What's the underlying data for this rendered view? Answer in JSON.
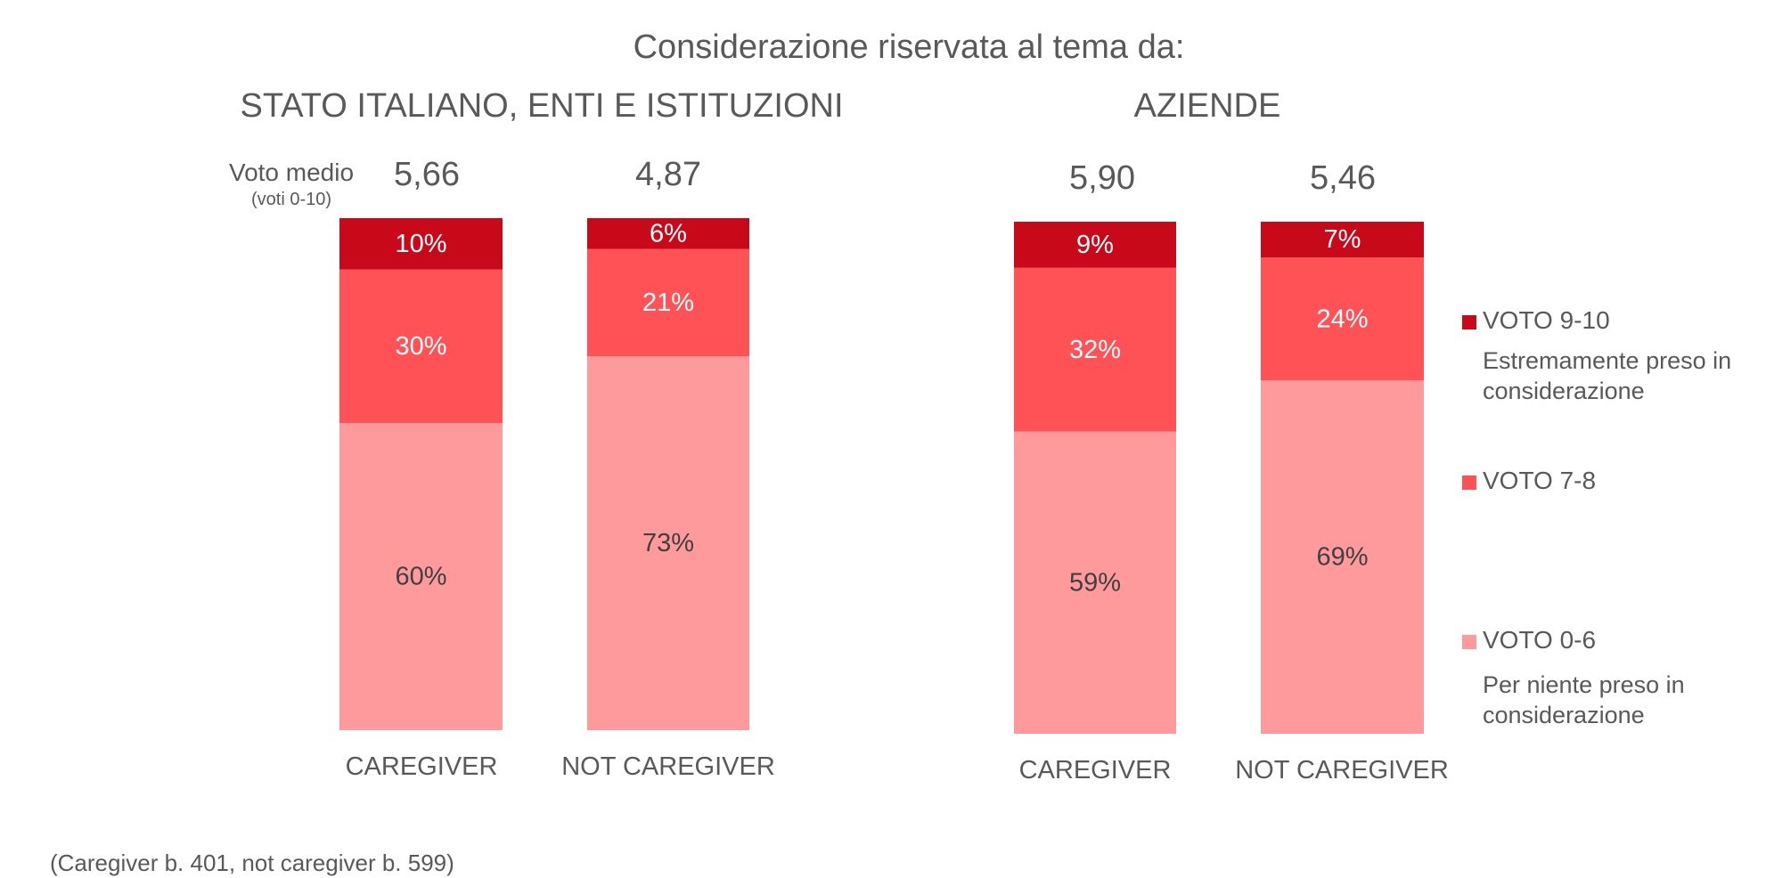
{
  "chart_data": {
    "type": "bar",
    "stacked": true,
    "title": "Considerazione riservata al tema da:",
    "avg_label": "Voto medio",
    "avg_sublabel": "(voti 0-10)",
    "ylim": [
      0,
      100
    ],
    "legend_position": "right",
    "series": [
      {
        "name": "VOTO 0-6",
        "description": "Per niente preso in considerazione",
        "color": "#FF9A9C",
        "label_color": "#404040"
      },
      {
        "name": "VOTO 7-8",
        "description": "",
        "color": "#FF5257",
        "label_color": "#FFFFFF"
      },
      {
        "name": "VOTO 9-10",
        "description": "Estremamente preso in considerazione",
        "color": "#C8091A",
        "label_color": "#FFFFFF"
      }
    ],
    "groups": [
      {
        "title": "STATO ITALIANO, ENTI E ISTITUZIONI",
        "categories": [
          "CAREGIVER",
          "NOT CAREGIVER"
        ],
        "averages": [
          "5,66",
          "4,87"
        ],
        "values": {
          "VOTO 0-6": [
            60,
            73
          ],
          "VOTO 7-8": [
            30,
            21
          ],
          "VOTO 9-10": [
            10,
            6
          ]
        },
        "labels": {
          "VOTO 0-6": [
            "60%",
            "73%"
          ],
          "VOTO 7-8": [
            "30%",
            "21%"
          ],
          "VOTO 9-10": [
            "10%",
            "6%"
          ]
        }
      },
      {
        "title": "AZIENDE",
        "categories": [
          "CAREGIVER",
          "NOT CAREGIVER"
        ],
        "averages": [
          "5,90",
          "5,46"
        ],
        "values": {
          "VOTO 0-6": [
            59,
            69
          ],
          "VOTO 7-8": [
            32,
            24
          ],
          "VOTO 9-10": [
            9,
            7
          ]
        },
        "labels": {
          "VOTO 0-6": [
            "59%",
            "69%"
          ],
          "VOTO 7-8": [
            "32%",
            "24%"
          ],
          "VOTO 9-10": [
            "9%",
            "7%"
          ]
        }
      }
    ],
    "footnote": "(Caregiver b. 401, not caregiver b. 599)"
  }
}
